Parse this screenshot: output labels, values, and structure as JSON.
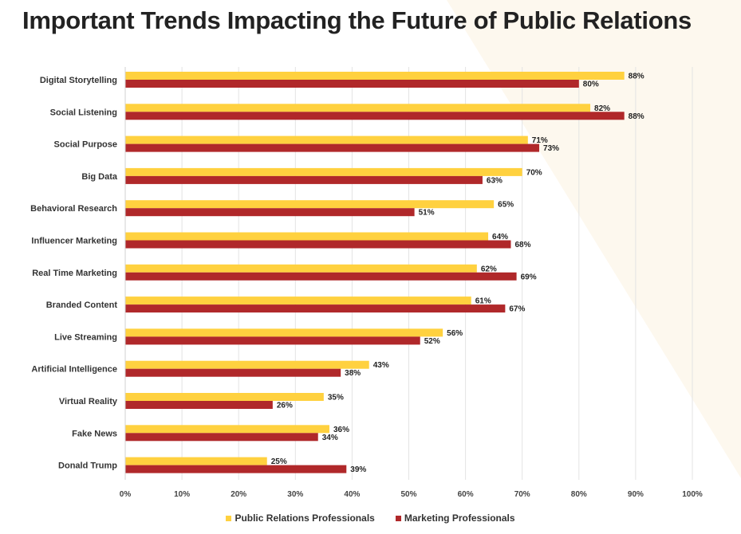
{
  "title": "Important Trends Impacting the Future of Public Relations",
  "colors": {
    "pr": "#FFD13F",
    "marketing": "#B0282A",
    "grid": "#E3E3E3",
    "background_wedge": "#FDF8EE"
  },
  "chart_data": {
    "type": "bar",
    "orientation": "horizontal",
    "title": "Important Trends Impacting the Future of Public Relations",
    "categories": [
      "Digital Storytelling",
      "Social Listening",
      "Social Purpose",
      "Big Data",
      "Behavioral Research",
      "Influencer Marketing",
      "Real Time Marketing",
      "Branded Content",
      "Live Streaming",
      "Artificial Intelligence",
      "Virtual Reality",
      "Fake News",
      "Donald Trump"
    ],
    "series": [
      {
        "name": "Public Relations Professionals",
        "color": "#FFD13F",
        "values": [
          88,
          82,
          71,
          70,
          65,
          64,
          62,
          61,
          56,
          43,
          35,
          36,
          25
        ],
        "labels": [
          "88%",
          "82%",
          "71%",
          "70%",
          "65%",
          "64%",
          "62%",
          "61%",
          "56%",
          "43%",
          "35%",
          "36%",
          "25%"
        ]
      },
      {
        "name": "Marketing Professionals",
        "color": "#B0282A",
        "values": [
          80,
          88,
          73,
          63,
          51,
          68,
          69,
          67,
          52,
          38,
          26,
          34,
          39
        ],
        "labels": [
          "80%",
          "88%",
          "73%",
          "63%",
          "51%",
          "68%",
          "69%",
          "67%",
          "52%",
          "38%",
          "26%",
          "34%",
          "39%"
        ]
      }
    ],
    "xlim": [
      0,
      100
    ],
    "x_ticks": [
      "0%",
      "10%",
      "20%",
      "30%",
      "40%",
      "50%",
      "60%",
      "70%",
      "80%",
      "90%",
      "100%"
    ],
    "grid": true,
    "legend_position": "bottom-center"
  }
}
